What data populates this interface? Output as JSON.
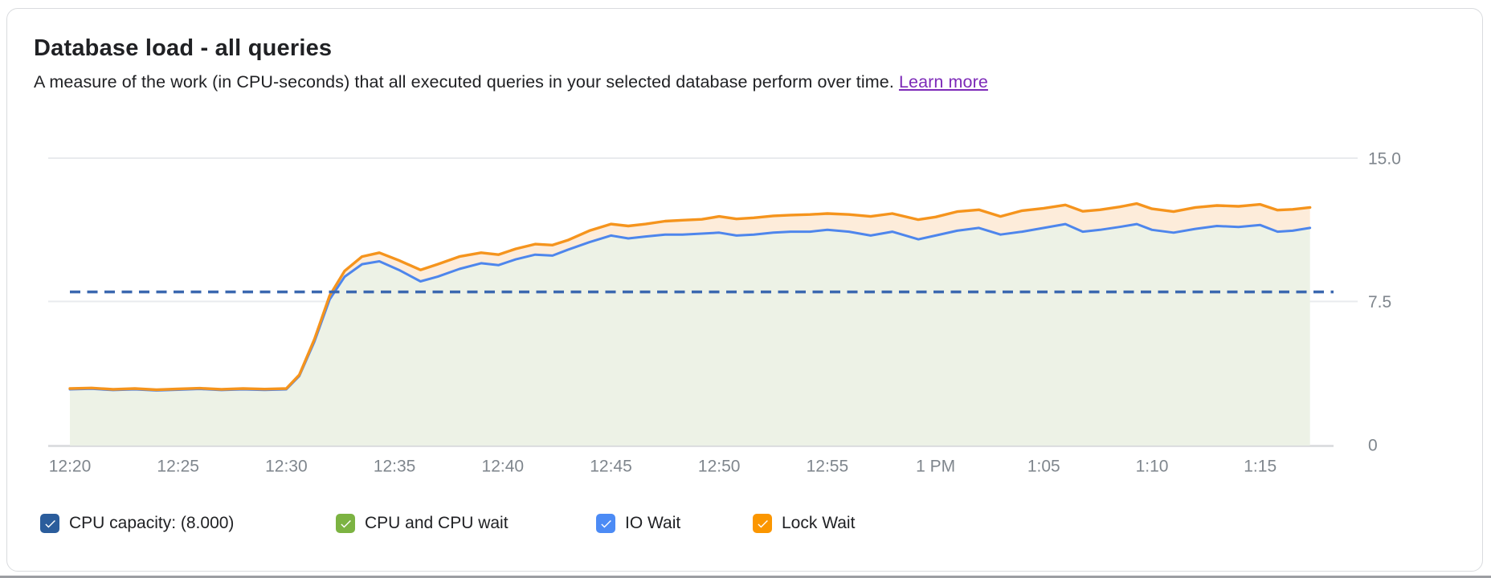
{
  "header": {
    "title": "Database load - all queries",
    "subtitle": "A measure of the work (in CPU-seconds) that all executed queries in your selected database perform over time.",
    "learn_more_label": "Learn more",
    "learn_more_color": "#7d2ab8"
  },
  "chart_data": {
    "type": "area",
    "title": "Database load - all queries",
    "xlabel": "",
    "ylabel": "CPU-seconds",
    "y_axis_side": "right",
    "ylim": [
      0,
      15.3
    ],
    "grid": true,
    "legend_position": "bottom",
    "y_ticks": [
      {
        "label": "15.0",
        "value": 15.0
      },
      {
        "label": "7.5",
        "value": 7.5
      },
      {
        "label": "0",
        "value": 0
      }
    ],
    "x_tick_labels": [
      "12:20",
      "12:25",
      "12:30",
      "12:35",
      "12:40",
      "12:45",
      "12:50",
      "12:55",
      "1 PM",
      "1:05",
      "1:10",
      "1:15"
    ],
    "x_minutes_per_tick": 5,
    "x_minutes": [
      0,
      1,
      2,
      3,
      4,
      5,
      6,
      7,
      8,
      9,
      10,
      10.6,
      11.3,
      12,
      12.7,
      13.5,
      14.3,
      15.2,
      16.2,
      17,
      18,
      19,
      19.8,
      20.6,
      21.5,
      22.3,
      23,
      24,
      25,
      25.8,
      26.6,
      27.5,
      28.3,
      29.2,
      30,
      30.8,
      31.6,
      32.5,
      33.3,
      34.2,
      35,
      36,
      37,
      38,
      39.2,
      40,
      41,
      42,
      43,
      44,
      45,
      46,
      46.8,
      47.6,
      48.5,
      49.3,
      50,
      51,
      52,
      53,
      54,
      55,
      55.8,
      56.5,
      57.3
    ],
    "capacity": {
      "name": "CPU capacity",
      "value": 8.0,
      "label_value": "8.000",
      "color": "#3b68b0",
      "style": "dashed"
    },
    "series": [
      {
        "name": "CPU and CPU wait + IO Wait (stacked top)",
        "line_color": "#4e86ec",
        "fill_color": "#edf2e6",
        "values": [
          2.9,
          2.93,
          2.86,
          2.9,
          2.84,
          2.88,
          2.92,
          2.86,
          2.9,
          2.87,
          2.9,
          3.6,
          5.4,
          7.6,
          8.8,
          9.45,
          9.6,
          9.15,
          8.55,
          8.8,
          9.2,
          9.5,
          9.4,
          9.7,
          9.95,
          9.9,
          10.2,
          10.6,
          10.95,
          10.8,
          10.9,
          11.0,
          11.0,
          11.05,
          11.1,
          10.95,
          11.0,
          11.1,
          11.15,
          11.15,
          11.25,
          11.15,
          10.95,
          11.15,
          10.75,
          10.95,
          11.2,
          11.35,
          11.0,
          11.15,
          11.35,
          11.55,
          11.15,
          11.25,
          11.4,
          11.55,
          11.25,
          11.1,
          11.3,
          11.45,
          11.4,
          11.5,
          11.15,
          11.2,
          11.35
        ]
      },
      {
        "name": "Total load incl. Lock Wait (stacked top)",
        "line_color": "#f5941d",
        "fill_color": "#fdecda",
        "values": [
          2.94,
          2.97,
          2.9,
          2.94,
          2.88,
          2.92,
          2.96,
          2.9,
          2.94,
          2.91,
          2.94,
          3.66,
          5.52,
          7.8,
          9.1,
          9.85,
          10.05,
          9.65,
          9.15,
          9.45,
          9.85,
          10.05,
          9.95,
          10.25,
          10.5,
          10.45,
          10.7,
          11.2,
          11.55,
          11.45,
          11.55,
          11.7,
          11.75,
          11.8,
          11.95,
          11.82,
          11.88,
          11.98,
          12.02,
          12.05,
          12.1,
          12.05,
          11.95,
          12.1,
          11.78,
          11.92,
          12.2,
          12.3,
          11.95,
          12.25,
          12.38,
          12.55,
          12.22,
          12.3,
          12.45,
          12.62,
          12.35,
          12.2,
          12.42,
          12.52,
          12.48,
          12.58,
          12.28,
          12.32,
          12.42
        ]
      }
    ]
  },
  "legend": {
    "items": [
      {
        "label": "CPU capacity: (8.000)",
        "color": "#2b5d9c",
        "checked": true
      },
      {
        "label": "CPU and CPU wait",
        "color": "#7cb342",
        "checked": true
      },
      {
        "label": "IO Wait",
        "color": "#4c8bf5",
        "checked": true
      },
      {
        "label": "Lock Wait",
        "color": "#fb9600",
        "checked": true
      }
    ]
  }
}
